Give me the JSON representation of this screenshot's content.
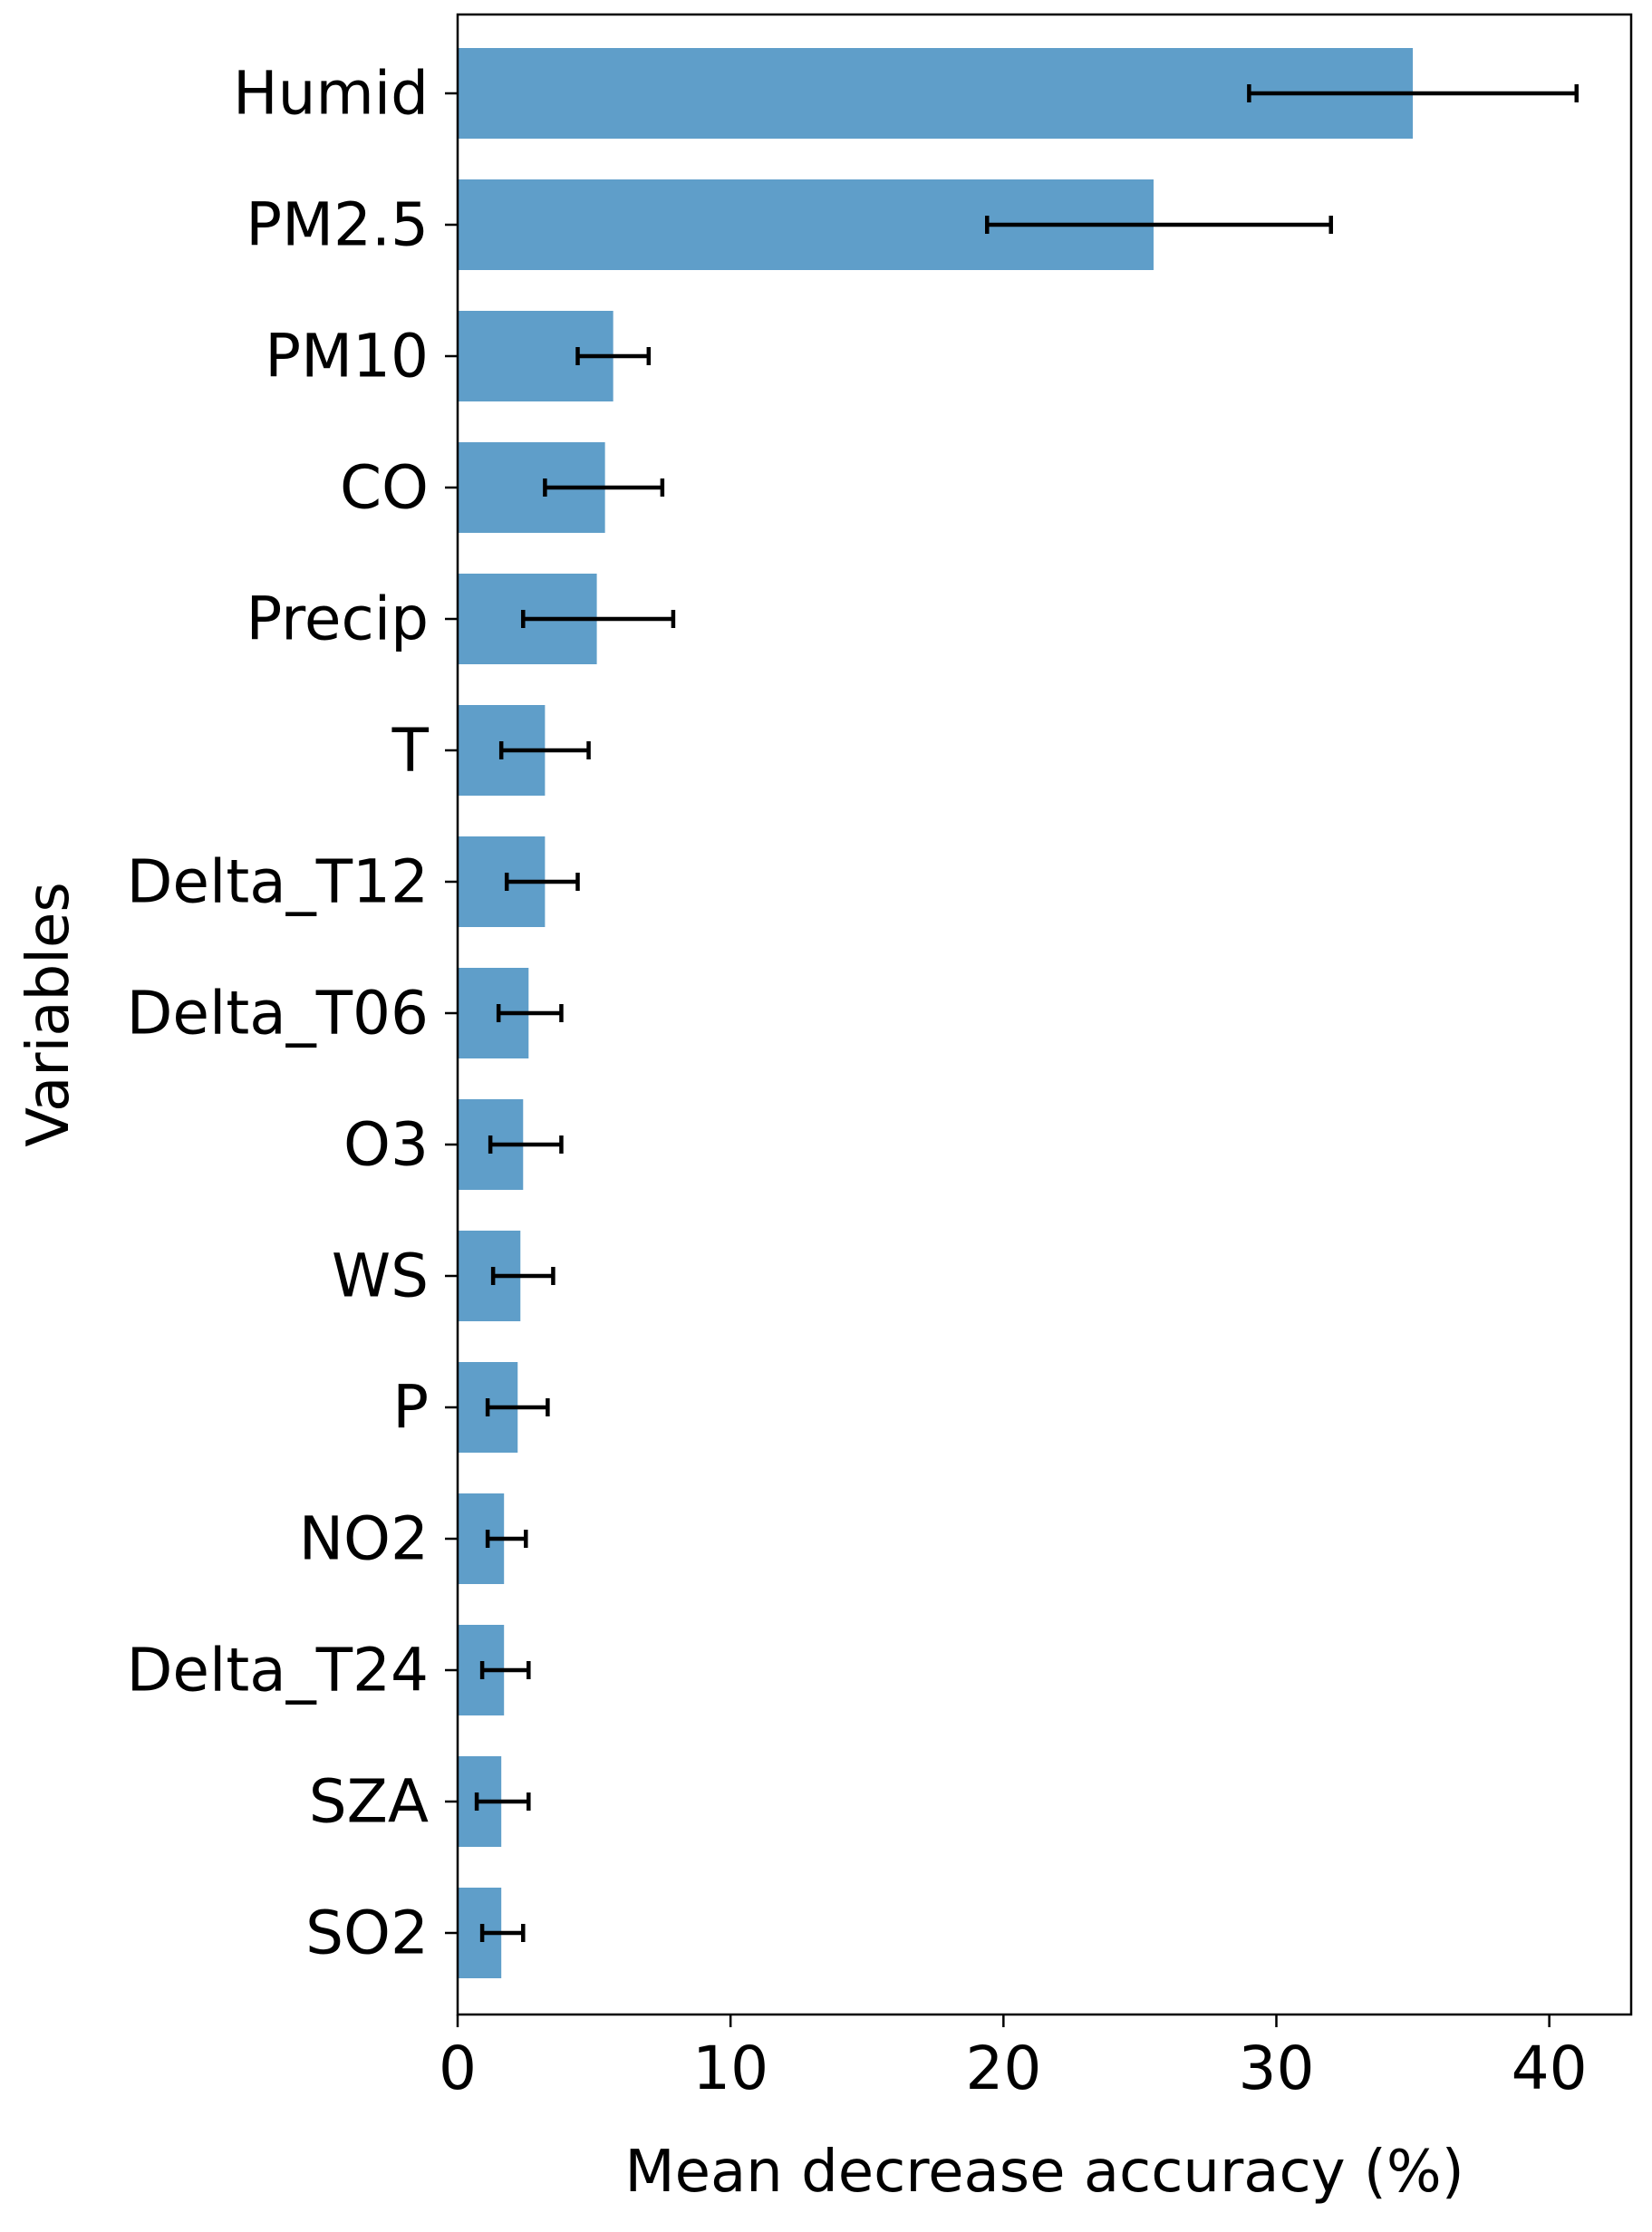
{
  "chart_data": {
    "type": "bar",
    "orientation": "horizontal",
    "title": "",
    "xlabel": "Mean decrease accuracy (%)",
    "ylabel": "Variables",
    "xlim": [
      0,
      43
    ],
    "xticks": [
      0,
      10,
      20,
      30,
      40
    ],
    "grid": false,
    "bar_color": "#5f9ec9",
    "error_bar_color": "#000000",
    "categories": [
      "Humid",
      "PM2.5",
      "PM10",
      "CO",
      "Precip",
      "T",
      "Delta_T12",
      "Delta_T06",
      "O3",
      "WS",
      "P",
      "NO2",
      "Delta_T24",
      "SZA",
      "SO2"
    ],
    "values": [
      35.0,
      25.5,
      5.7,
      5.4,
      5.1,
      3.2,
      3.2,
      2.6,
      2.4,
      2.3,
      2.2,
      1.7,
      1.7,
      1.6,
      1.6
    ],
    "error_low": [
      29.0,
      19.4,
      4.4,
      3.2,
      2.4,
      1.6,
      1.8,
      1.5,
      1.2,
      1.3,
      1.1,
      1.1,
      0.9,
      0.7,
      0.9
    ],
    "error_high": [
      41.0,
      32.0,
      7.0,
      7.5,
      7.9,
      4.8,
      4.4,
      3.8,
      3.8,
      3.5,
      3.3,
      2.5,
      2.6,
      2.6,
      2.4
    ]
  }
}
